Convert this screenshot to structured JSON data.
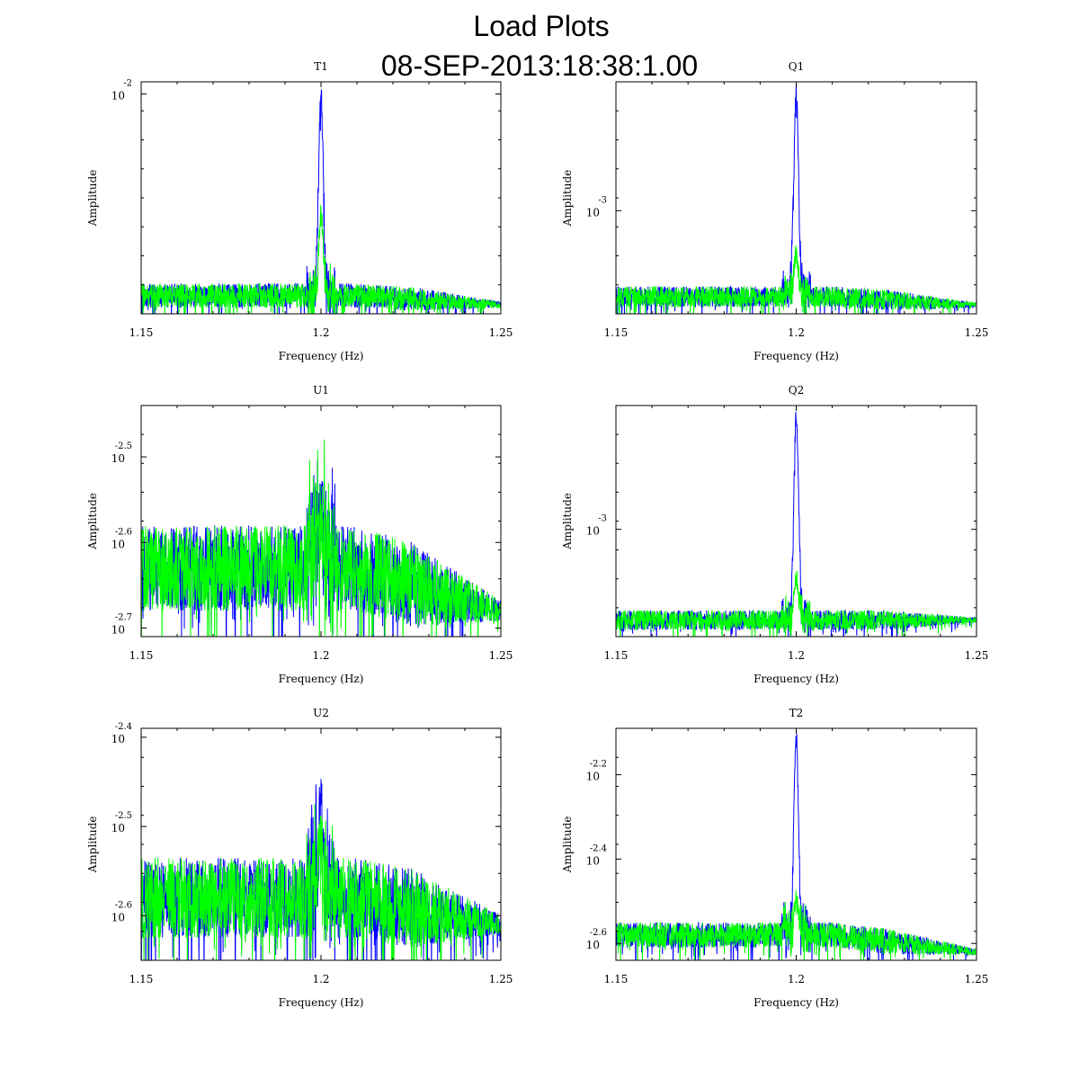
{
  "figure": {
    "title": "Load Plots",
    "subtitle": "08-SEP-2013:18:38:1.00"
  },
  "colors": {
    "series_a": "#0000ff",
    "series_b": "#00ff00",
    "axes": "#000000"
  },
  "chart_data": [
    {
      "type": "line",
      "title": "T1",
      "xlabel": "Frequency (Hz)",
      "ylabel": "Amplitude",
      "xlim": [
        1.15,
        1.25
      ],
      "xticks": [
        "1.15",
        "1.2",
        "1.25"
      ],
      "yscale": "log10",
      "ylim_log10": [
        -2.36,
        -1.98
      ],
      "yticks": [
        {
          "base": "10",
          "exp": "-2",
          "log10": -2.0
        }
      ],
      "series": [
        {
          "color": "#0000ff",
          "peak_x": 1.2,
          "peak_log10": -2.0,
          "floor_log10": -2.33,
          "floor_end_log10": -2.345,
          "noise": 0.02
        },
        {
          "color": "#00ff00",
          "peak_x": 1.2,
          "peak_log10": -2.2,
          "floor_log10": -2.33,
          "floor_end_log10": -2.345,
          "noise": 0.02
        }
      ]
    },
    {
      "type": "line",
      "title": "Q1",
      "xlabel": "Frequency (Hz)",
      "ylabel": "Amplitude",
      "xlim": [
        1.15,
        1.25
      ],
      "xticks": [
        "1.15",
        "1.2",
        "1.25"
      ],
      "yscale": "log10",
      "ylim_log10": [
        -3.12,
        -2.85
      ],
      "yticks": [
        {
          "base": "10",
          "exp": "-3",
          "log10": -3.0
        }
      ],
      "series": [
        {
          "color": "#0000ff",
          "peak_x": 1.2,
          "peak_log10": -2.86,
          "floor_log10": -3.1,
          "floor_end_log10": -3.11,
          "noise": 0.012
        },
        {
          "color": "#00ff00",
          "peak_x": 1.2,
          "peak_log10": -3.05,
          "floor_log10": -3.1,
          "floor_end_log10": -3.11,
          "noise": 0.012
        }
      ]
    },
    {
      "type": "line",
      "title": "U1",
      "xlabel": "Frequency (Hz)",
      "ylabel": "Amplitude",
      "xlim": [
        1.15,
        1.25
      ],
      "xticks": [
        "1.15",
        "1.2",
        "1.25"
      ],
      "yscale": "log10",
      "ylim_log10": [
        -2.71,
        -2.44
      ],
      "yticks": [
        {
          "base": "10",
          "exp": "-2.5",
          "log10": -2.5
        },
        {
          "base": "10",
          "exp": "-2.6",
          "log10": -2.6
        },
        {
          "base": "10",
          "exp": "-2.7",
          "log10": -2.7
        }
      ],
      "series": [
        {
          "color": "#0000ff",
          "peak_x": 1.2,
          "peak_log10": -2.55,
          "floor_log10": -2.63,
          "floor_end_log10": -2.68,
          "noise": 0.05
        },
        {
          "color": "#00ff00",
          "peak_x": 1.2,
          "peak_log10": -2.57,
          "floor_log10": -2.63,
          "floor_end_log10": -2.68,
          "noise": 0.05
        }
      ]
    },
    {
      "type": "line",
      "title": "Q2",
      "xlabel": "Frequency (Hz)",
      "ylabel": "Amplitude",
      "xlim": [
        1.15,
        1.25
      ],
      "xticks": [
        "1.15",
        "1.2",
        "1.25"
      ],
      "yscale": "log10",
      "ylim_log10": [
        -3.13,
        -2.85
      ],
      "yticks": [
        {
          "base": "10",
          "exp": "-3",
          "log10": -3.0
        }
      ],
      "series": [
        {
          "color": "#0000ff",
          "peak_x": 1.2,
          "peak_log10": -2.86,
          "floor_log10": -3.11,
          "floor_end_log10": -3.11,
          "noise": 0.012
        },
        {
          "color": "#00ff00",
          "peak_x": 1.2,
          "peak_log10": -3.06,
          "floor_log10": -3.11,
          "floor_end_log10": -3.11,
          "noise": 0.012
        }
      ]
    },
    {
      "type": "line",
      "title": "U2",
      "xlabel": "Frequency (Hz)",
      "ylabel": "Amplitude",
      "xlim": [
        1.15,
        1.25
      ],
      "xticks": [
        "1.15",
        "1.2",
        "1.25"
      ],
      "yscale": "log10",
      "ylim_log10": [
        -2.65,
        -2.39
      ],
      "yticks": [
        {
          "base": "10",
          "exp": "-2.4",
          "log10": -2.4
        },
        {
          "base": "10",
          "exp": "-2.5",
          "log10": -2.5
        },
        {
          "base": "10",
          "exp": "-2.6",
          "log10": -2.6
        }
      ],
      "series": [
        {
          "color": "#0000ff",
          "peak_x": 1.2,
          "peak_log10": -2.48,
          "floor_log10": -2.58,
          "floor_end_log10": -2.61,
          "noise": 0.045
        },
        {
          "color": "#00ff00",
          "peak_x": 1.2,
          "peak_log10": -2.52,
          "floor_log10": -2.58,
          "floor_end_log10": -2.61,
          "noise": 0.045
        }
      ]
    },
    {
      "type": "line",
      "title": "T2",
      "xlabel": "Frequency (Hz)",
      "ylabel": "Amplitude",
      "xlim": [
        1.15,
        1.25
      ],
      "xticks": [
        "1.15",
        "1.2",
        "1.25"
      ],
      "yscale": "log10",
      "ylim_log10": [
        -2.64,
        -2.09
      ],
      "yticks": [
        {
          "base": "10",
          "exp": "-2.2",
          "log10": -2.2
        },
        {
          "base": "10",
          "exp": "-2.4",
          "log10": -2.4
        },
        {
          "base": "10",
          "exp": "-2.6",
          "log10": -2.6
        }
      ],
      "series": [
        {
          "color": "#0000ff",
          "peak_x": 1.2,
          "peak_log10": -2.11,
          "floor_log10": -2.58,
          "floor_end_log10": -2.62,
          "noise": 0.03
        },
        {
          "color": "#00ff00",
          "peak_x": 1.2,
          "peak_log10": -2.5,
          "floor_log10": -2.58,
          "floor_end_log10": -2.62,
          "noise": 0.03
        }
      ]
    }
  ]
}
